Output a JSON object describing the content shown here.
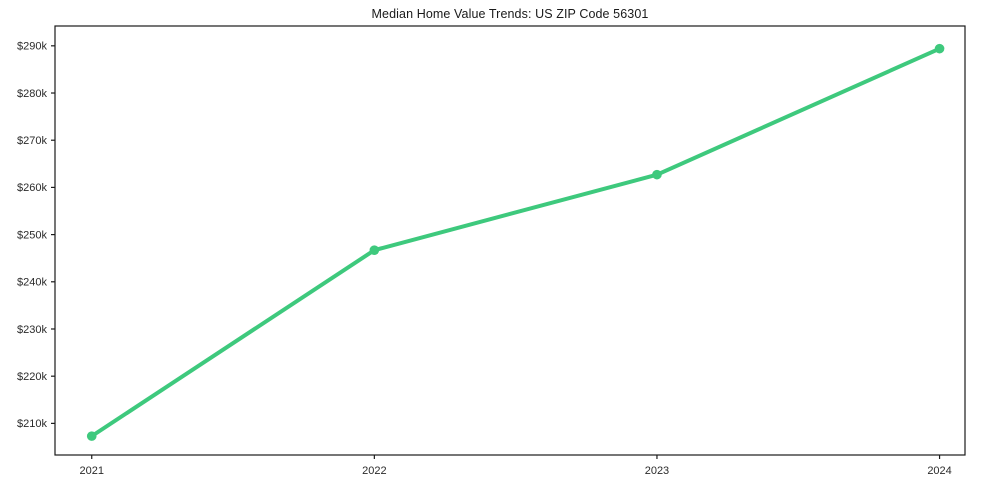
{
  "chart_data": {
    "type": "line",
    "title": "Median Home Value Trends: US ZIP Code 56301",
    "xlabel": "",
    "ylabel": "",
    "x": [
      2021,
      2022,
      2023,
      2024
    ],
    "series": [
      {
        "name": "Median Home Value",
        "values": [
          207300,
          246700,
          262700,
          289400
        ],
        "color": "#3ec97d",
        "marker": "circle"
      }
    ],
    "xticks": [
      2021,
      2022,
      2023,
      2024
    ],
    "xtick_labels": [
      "2021",
      "2022",
      "2023",
      "2024"
    ],
    "yticks": [
      210000,
      220000,
      230000,
      240000,
      250000,
      260000,
      270000,
      280000,
      290000
    ],
    "ytick_labels": [
      "$210k",
      "$220k",
      "$230k",
      "$240k",
      "$250k",
      "$260k",
      "$270k",
      "$280k",
      "$290k"
    ],
    "xlim": [
      2020.87,
      2024.09
    ],
    "ylim": [
      203300,
      294200
    ],
    "grid": false,
    "legend": false,
    "axis_color": "#1a1a1a",
    "tick_label_color": "#2b2b2b",
    "background": "#ffffff"
  }
}
